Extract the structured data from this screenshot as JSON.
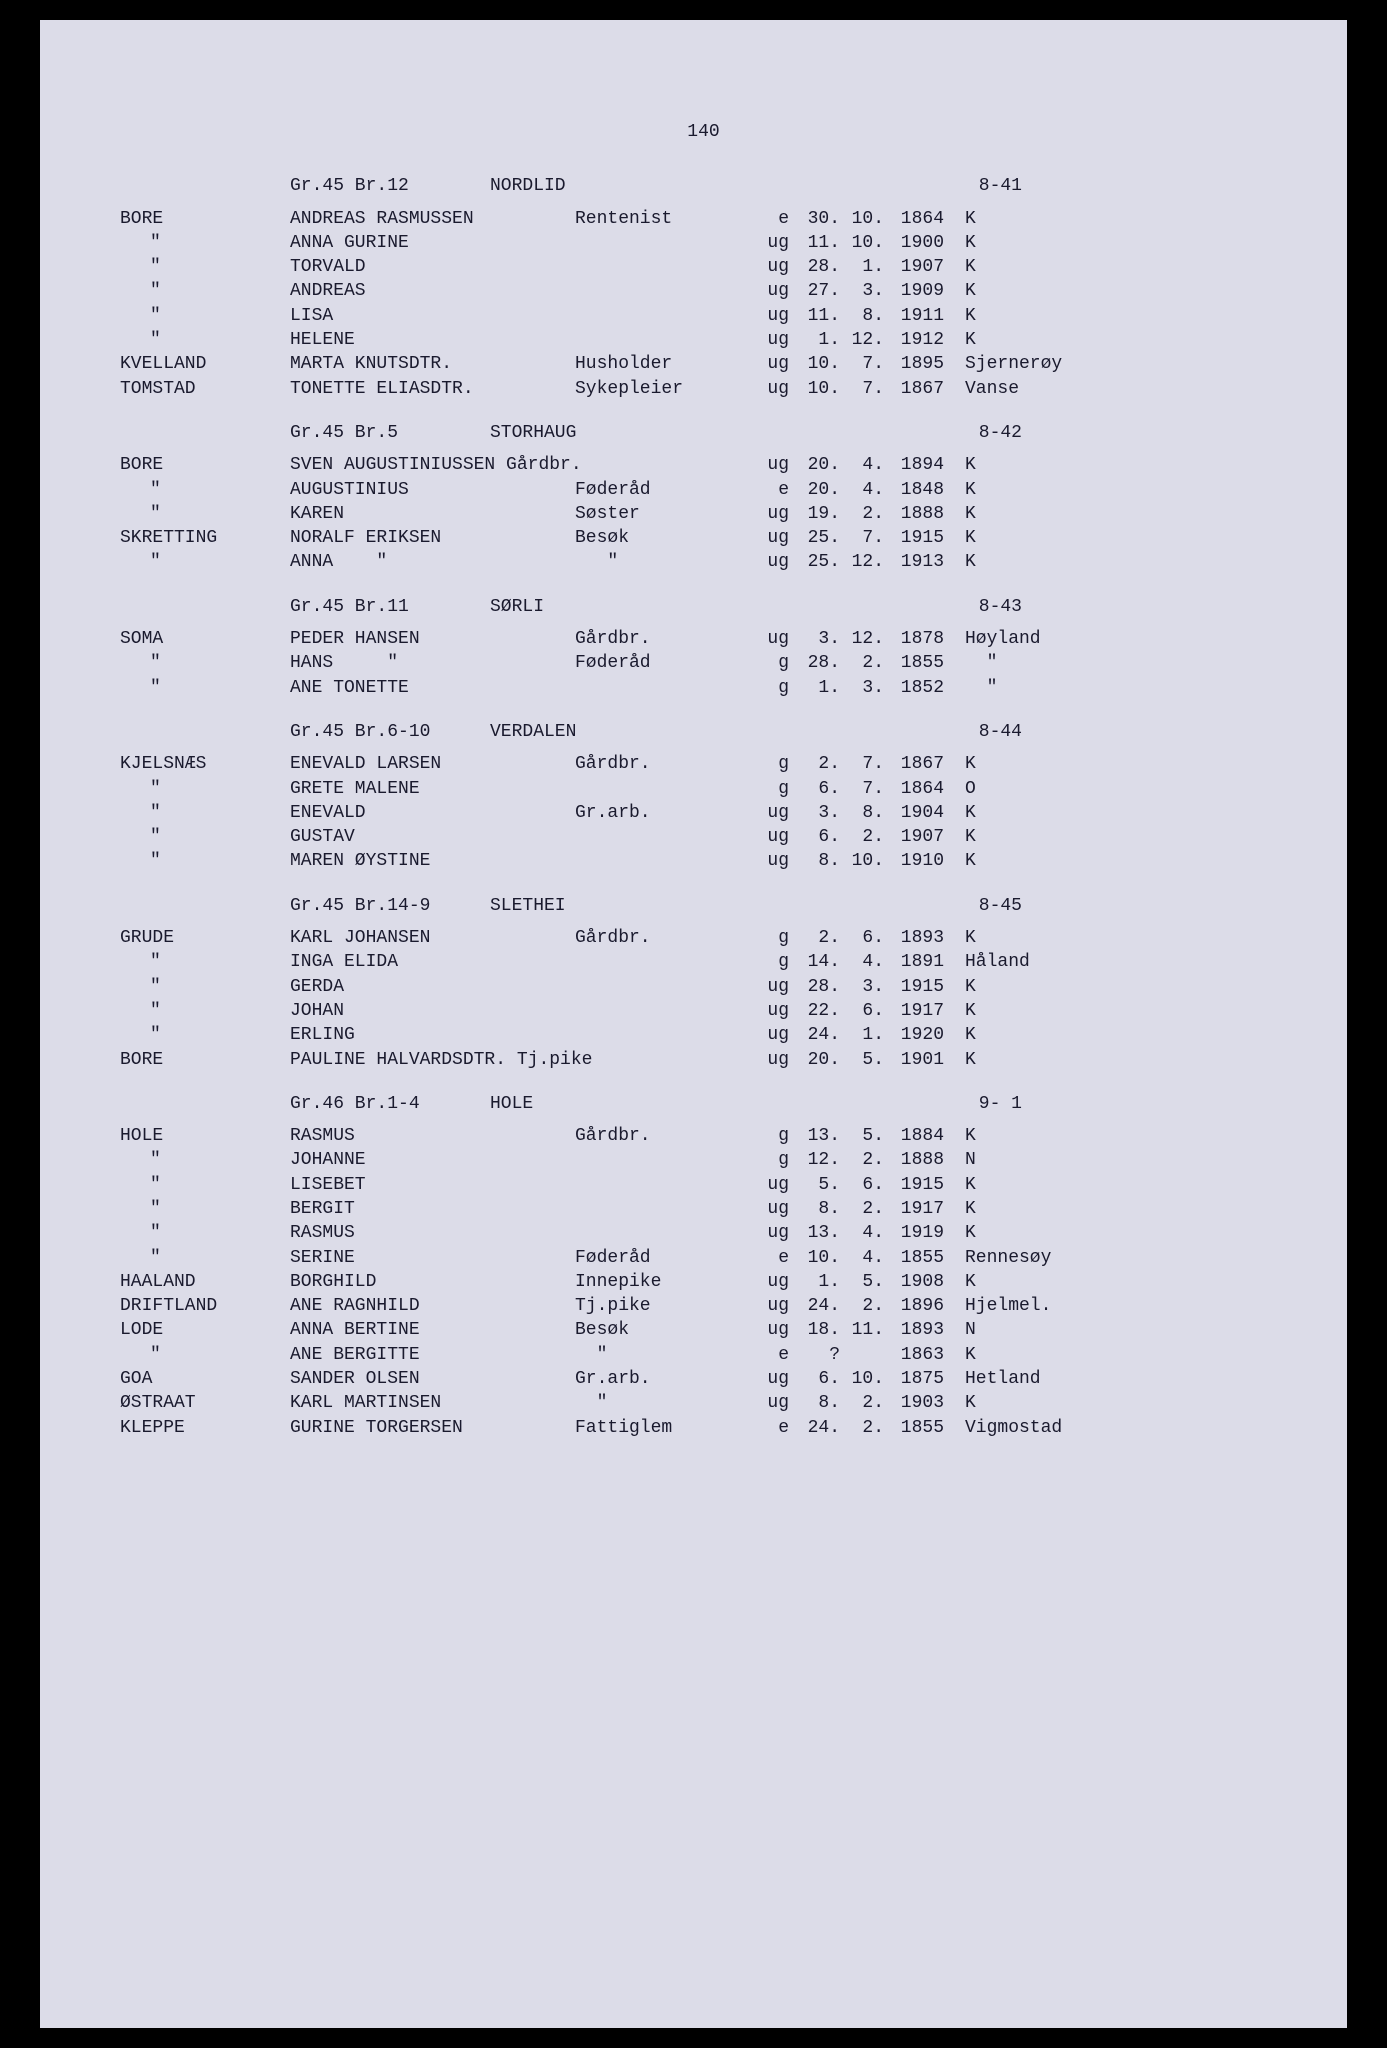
{
  "pageNumber": "140",
  "sections": [
    {
      "header": {
        "grbr": "Gr.45 Br.12",
        "place": "NORDLID",
        "ref": "8-41"
      },
      "rows": [
        {
          "surname": "BORE",
          "name": "ANDREAS RASMUSSEN",
          "role": "Rentenist",
          "status": "e",
          "day": "30.",
          "month": "10.",
          "year": "1864",
          "origin": "K"
        },
        {
          "surname": "\"",
          "name": "ANNA GURINE",
          "role": "",
          "status": "ug",
          "day": "11.",
          "month": "10.",
          "year": "1900",
          "origin": "K"
        },
        {
          "surname": "\"",
          "name": "TORVALD",
          "role": "",
          "status": "ug",
          "day": "28.",
          "month": "1.",
          "year": "1907",
          "origin": "K"
        },
        {
          "surname": "\"",
          "name": "ANDREAS",
          "role": "",
          "status": "ug",
          "day": "27.",
          "month": "3.",
          "year": "1909",
          "origin": "K"
        },
        {
          "surname": "\"",
          "name": "LISA",
          "role": "",
          "status": "ug",
          "day": "11.",
          "month": "8.",
          "year": "1911",
          "origin": "K"
        },
        {
          "surname": "\"",
          "name": "HELENE",
          "role": "",
          "status": "ug",
          "day": "1.",
          "month": "12.",
          "year": "1912",
          "origin": "K"
        },
        {
          "surname": "KVELLAND",
          "name": "MARTA KNUTSDTR.",
          "role": "Husholder",
          "status": "ug",
          "day": "10.",
          "month": "7.",
          "year": "1895",
          "origin": "Sjernerøy"
        },
        {
          "surname": "TOMSTAD",
          "name": "TONETTE ELIASDTR.",
          "role": "Sykepleier",
          "status": "ug",
          "day": "10.",
          "month": "7.",
          "year": "1867",
          "origin": "Vanse"
        }
      ]
    },
    {
      "header": {
        "grbr": "Gr.45 Br.5",
        "place": "STORHAUG",
        "ref": "8-42"
      },
      "rows": [
        {
          "surname": "BORE",
          "name": "SVEN AUGUSTINIUSSEN",
          "role": "Gårdbr.",
          "status": "ug",
          "day": "20.",
          "month": "4.",
          "year": "1894",
          "origin": "K",
          "nameRoleOverlap": true
        },
        {
          "surname": "\"",
          "name": "AUGUSTINIUS",
          "role": "Føderåd",
          "status": "e",
          "day": "20.",
          "month": "4.",
          "year": "1848",
          "origin": "K"
        },
        {
          "surname": "\"",
          "name": "KAREN",
          "role": "Søster",
          "status": "ug",
          "day": "19.",
          "month": "2.",
          "year": "1888",
          "origin": "K"
        },
        {
          "surname": "SKRETTING",
          "name": "NORALF ERIKSEN",
          "role": "Besøk",
          "status": "ug",
          "day": "25.",
          "month": "7.",
          "year": "1915",
          "origin": "K"
        },
        {
          "surname": "\"",
          "name": "ANNA    \"",
          "role": "   \"",
          "status": "ug",
          "day": "25.",
          "month": "12.",
          "year": "1913",
          "origin": "K"
        }
      ]
    },
    {
      "header": {
        "grbr": "Gr.45 Br.11",
        "place": "SØRLI",
        "ref": "8-43"
      },
      "rows": [
        {
          "surname": "SOMA",
          "name": "PEDER HANSEN",
          "role": "Gårdbr.",
          "status": "ug",
          "day": "3.",
          "month": "12.",
          "year": "1878",
          "origin": "Høyland"
        },
        {
          "surname": "\"",
          "name": "HANS     \"",
          "role": "Føderåd",
          "status": "g",
          "day": "28.",
          "month": "2.",
          "year": "1855",
          "origin": "  \""
        },
        {
          "surname": "\"",
          "name": "ANE TONETTE",
          "role": "",
          "status": "g",
          "day": "1.",
          "month": "3.",
          "year": "1852",
          "origin": "  \""
        }
      ]
    },
    {
      "header": {
        "grbr": "Gr.45 Br.6-10",
        "place": "VERDALEN",
        "ref": "8-44"
      },
      "rows": [
        {
          "surname": "KJELSNÆS",
          "name": "ENEVALD LARSEN",
          "role": "Gårdbr.",
          "status": "g",
          "day": "2.",
          "month": "7.",
          "year": "1867",
          "origin": "K"
        },
        {
          "surname": "\"",
          "name": "GRETE MALENE",
          "role": "",
          "status": "g",
          "day": "6.",
          "month": "7.",
          "year": "1864",
          "origin": "O"
        },
        {
          "surname": "\"",
          "name": "ENEVALD",
          "role": "Gr.arb.",
          "status": "ug",
          "day": "3.",
          "month": "8.",
          "year": "1904",
          "origin": "K"
        },
        {
          "surname": "\"",
          "name": "GUSTAV",
          "role": "",
          "status": "ug",
          "day": "6.",
          "month": "2.",
          "year": "1907",
          "origin": "K"
        },
        {
          "surname": "\"",
          "name": "MAREN ØYSTINE",
          "role": "",
          "status": "ug",
          "day": "8.",
          "month": "10.",
          "year": "1910",
          "origin": "K"
        }
      ]
    },
    {
      "header": {
        "grbr": "Gr.45 Br.14-9",
        "place": "SLETHEI",
        "ref": "8-45"
      },
      "rows": [
        {
          "surname": "GRUDE",
          "name": "KARL JOHANSEN",
          "role": "Gårdbr.",
          "status": "g",
          "day": "2.",
          "month": "6.",
          "year": "1893",
          "origin": "K"
        },
        {
          "surname": "\"",
          "name": "INGA ELIDA",
          "role": "",
          "status": "g",
          "day": "14.",
          "month": "4.",
          "year": "1891",
          "origin": "Håland"
        },
        {
          "surname": "\"",
          "name": "GERDA",
          "role": "",
          "status": "ug",
          "day": "28.",
          "month": "3.",
          "year": "1915",
          "origin": "K"
        },
        {
          "surname": "\"",
          "name": "JOHAN",
          "role": "",
          "status": "ug",
          "day": "22.",
          "month": "6.",
          "year": "1917",
          "origin": "K"
        },
        {
          "surname": "\"",
          "name": "ERLING",
          "role": "",
          "status": "ug",
          "day": "24.",
          "month": "1.",
          "year": "1920",
          "origin": "K"
        },
        {
          "surname": "BORE",
          "name": "PAULINE HALVARDSDTR.",
          "role": "Tj.pike",
          "status": "ug",
          "day": "20.",
          "month": "5.",
          "year": "1901",
          "origin": "K",
          "nameRoleOverlap": true
        }
      ]
    },
    {
      "header": {
        "grbr": "Gr.46 Br.1-4",
        "place": "HOLE",
        "ref": "9- 1"
      },
      "rows": [
        {
          "surname": "HOLE",
          "name": "RASMUS",
          "role": "Gårdbr.",
          "status": "g",
          "day": "13.",
          "month": "5.",
          "year": "1884",
          "origin": "K"
        },
        {
          "surname": "\"",
          "name": "JOHANNE",
          "role": "",
          "status": "g",
          "day": "12.",
          "month": "2.",
          "year": "1888",
          "origin": "N"
        },
        {
          "surname": "\"",
          "name": "LISEBET",
          "role": "",
          "status": "ug",
          "day": "5.",
          "month": "6.",
          "year": "1915",
          "origin": "K"
        },
        {
          "surname": "\"",
          "name": "BERGIT",
          "role": "",
          "status": "ug",
          "day": "8.",
          "month": "2.",
          "year": "1917",
          "origin": "K"
        },
        {
          "surname": "\"",
          "name": "RASMUS",
          "role": "",
          "status": "ug",
          "day": "13.",
          "month": "4.",
          "year": "1919",
          "origin": "K"
        },
        {
          "surname": "\"",
          "name": "SERINE",
          "role": "Føderåd",
          "status": "e",
          "day": "10.",
          "month": "4.",
          "year": "1855",
          "origin": "Rennesøy"
        },
        {
          "surname": "HAALAND",
          "name": "BORGHILD",
          "role": "Innepike",
          "status": "ug",
          "day": "1.",
          "month": "5.",
          "year": "1908",
          "origin": "K"
        },
        {
          "surname": "DRIFTLAND",
          "name": "ANE RAGNHILD",
          "role": "Tj.pike",
          "status": "ug",
          "day": "24.",
          "month": "2.",
          "year": "1896",
          "origin": "Hjelmel."
        },
        {
          "surname": "LODE",
          "name": "ANNA BERTINE",
          "role": "Besøk",
          "status": "ug",
          "day": "18.",
          "month": "11.",
          "year": "1893",
          "origin": "N"
        },
        {
          "surname": "\"",
          "name": "ANE BERGITTE",
          "role": "  \"",
          "status": "e",
          "day": "?",
          "month": "",
          "year": "1863",
          "origin": "K"
        },
        {
          "surname": "GOA",
          "name": "SANDER OLSEN",
          "role": "Gr.arb.",
          "status": "ug",
          "day": "6.",
          "month": "10.",
          "year": "1875",
          "origin": "Hetland"
        },
        {
          "surname": "ØSTRAAT",
          "name": "KARL MARTINSEN",
          "role": "  \"",
          "status": "ug",
          "day": "8.",
          "month": "2.",
          "year": "1903",
          "origin": "K"
        },
        {
          "surname": "KLEPPE",
          "name": "GURINE TORGERSEN",
          "role": "Fattiglem",
          "status": "e",
          "day": "24.",
          "month": "2.",
          "year": "1855",
          "origin": "Vigmostad"
        }
      ]
    }
  ]
}
